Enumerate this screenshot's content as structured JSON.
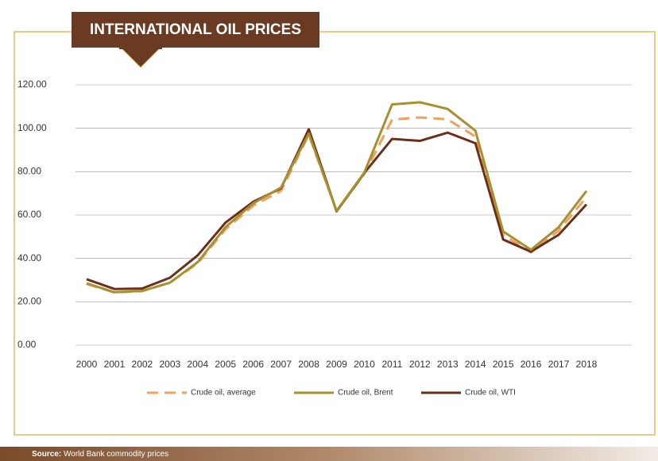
{
  "chart_data": {
    "type": "line",
    "title": "INTERNATIONAL OIL PRICES",
    "categories": [
      "2000",
      "2001",
      "2002",
      "2003",
      "2004",
      "2005",
      "2006",
      "2007",
      "2008",
      "2009",
      "2010",
      "2011",
      "2012",
      "2013",
      "2014",
      "2015",
      "2016",
      "2017",
      "2018"
    ],
    "series": [
      {
        "name": "Crude oil, average",
        "color": "#f0a060",
        "dashed": true,
        "values": [
          28.2,
          24.3,
          24.9,
          28.9,
          37.7,
          53.4,
          64.3,
          71.1,
          97.0,
          61.8,
          79.0,
          104.0,
          105.0,
          104.1,
          96.2,
          50.8,
          42.8,
          52.8,
          68.3
        ]
      },
      {
        "name": "Crude oil, Brent",
        "color": "#a8902e",
        "dashed": false,
        "values": [
          28.5,
          24.4,
          25.0,
          28.8,
          38.3,
          54.4,
          65.4,
          72.7,
          97.6,
          61.9,
          79.6,
          111.0,
          112.0,
          108.9,
          98.9,
          52.4,
          44.0,
          54.4,
          71.1
        ]
      },
      {
        "name": "Crude oil, WTI",
        "color": "#6b2e1a",
        "dashed": false,
        "values": [
          30.4,
          25.9,
          26.1,
          31.1,
          41.4,
          56.5,
          66.1,
          72.3,
          99.6,
          61.7,
          79.4,
          95.1,
          94.2,
          98.0,
          93.1,
          48.7,
          43.1,
          50.9,
          64.9
        ]
      }
    ],
    "ylim": [
      0,
      120
    ],
    "yticks": [
      {
        "value": 0,
        "label": "0.00"
      },
      {
        "value": 20,
        "label": "20.00"
      },
      {
        "value": 40,
        "label": "40.00"
      },
      {
        "value": 60,
        "label": "60.00"
      },
      {
        "value": 80,
        "label": "80.00"
      },
      {
        "value": 100,
        "label": "100.00"
      },
      {
        "value": 120,
        "label": "120.00"
      }
    ],
    "grid": true,
    "legend": "bottom",
    "source_label": "Source:",
    "source_text": "World Bank commodity prices"
  }
}
